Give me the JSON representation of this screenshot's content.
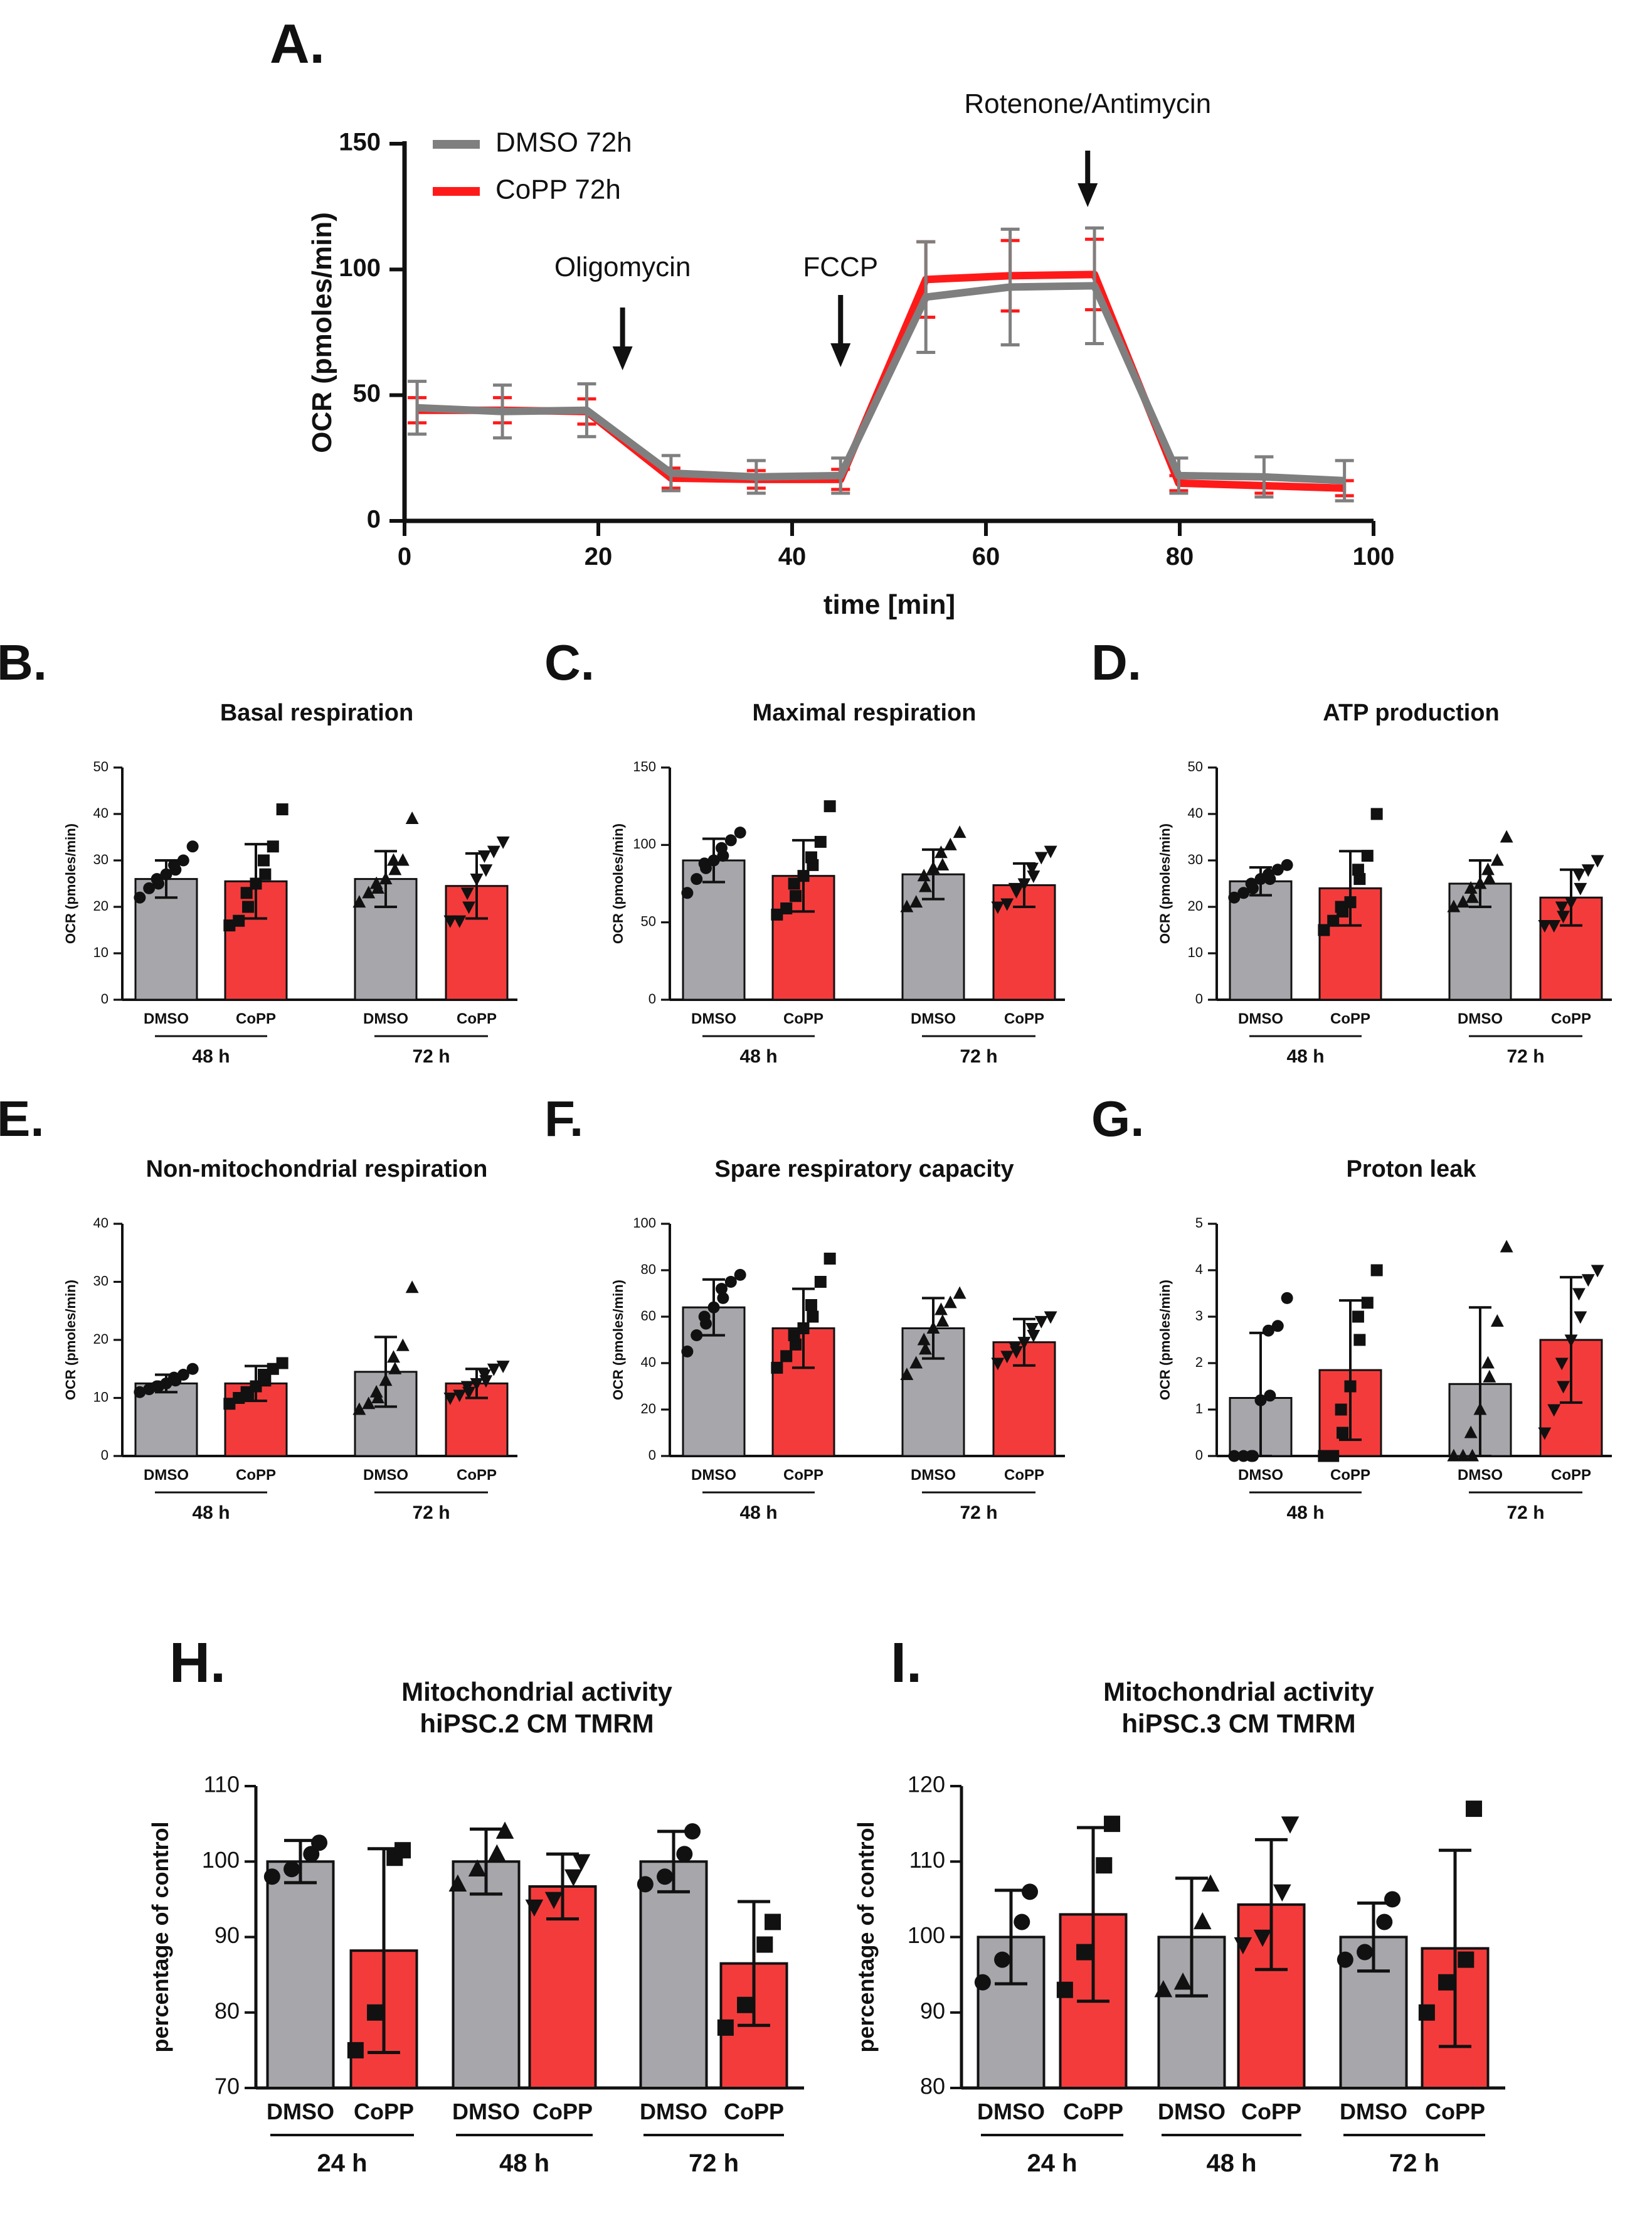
{
  "colors": {
    "dmso_bar": "#a6a6ab",
    "copp_bar": "#f43b3b",
    "dmso_line": "#7f7f7f",
    "copp_line": "#ff1a1a",
    "axis": "#111111"
  },
  "chart_data": [
    {
      "id": "A",
      "panel_label": "A.",
      "type": "line",
      "title": "",
      "xlabel": "time [min]",
      "ylabel": "OCR (pmoles/min)",
      "xlim": [
        0,
        100
      ],
      "ylim": [
        0,
        150
      ],
      "xticks": [
        "0",
        "20",
        "40",
        "60",
        "80",
        "100"
      ],
      "yticks": [
        "0",
        "50",
        "100",
        "150"
      ],
      "legend": [
        "DMSO 72h",
        "CoPP 72h"
      ],
      "annotations": [
        {
          "text": "Oligomycin",
          "x": 22.5
        },
        {
          "text": "FCCP",
          "x": 45
        },
        {
          "text": "Rotenone/Antimycin",
          "x": 70.5
        }
      ],
      "x": [
        1.3,
        10.1,
        18.8,
        27.5,
        36.3,
        45.0,
        53.8,
        62.5,
        71.2,
        79.9,
        88.7,
        97.0
      ],
      "series": [
        {
          "name": "DMSO 72h",
          "values": [
            45,
            43.5,
            44,
            19,
            17.5,
            18,
            89,
            93,
            93.5,
            18,
            17.5,
            16
          ],
          "errors": [
            10.5,
            10.5,
            10.5,
            7,
            6.5,
            7,
            22,
            23,
            23,
            7,
            8,
            8
          ]
        },
        {
          "name": "CoPP 72h",
          "values": [
            44,
            44,
            43.5,
            17,
            16.5,
            16.5,
            96,
            97.5,
            98,
            15,
            14,
            13
          ],
          "errors": [
            5,
            5,
            5,
            4,
            3.5,
            4,
            15,
            14,
            14,
            3,
            3,
            3
          ]
        }
      ]
    },
    {
      "id": "B",
      "panel_label": "B.",
      "type": "bar",
      "title": "Basal respiration",
      "ylabel": "OCR (pmoles/min)",
      "ylim": [
        0,
        50
      ],
      "yticks": [
        "0",
        "10",
        "20",
        "30",
        "40",
        "50"
      ],
      "categories": [
        "DMSO",
        "CoPP",
        "DMSO",
        "CoPP"
      ],
      "groups": [
        "48 h",
        "72 h"
      ],
      "values": [
        26,
        25.5,
        26,
        24.5
      ],
      "errors": [
        4,
        8,
        6,
        7
      ],
      "points": [
        [
          22,
          24,
          25,
          26,
          27,
          28,
          29,
          30,
          33
        ],
        [
          16,
          17,
          20,
          23,
          25,
          27,
          30,
          33,
          41
        ],
        [
          21,
          23,
          24,
          25,
          26,
          28,
          30,
          30,
          39
        ],
        [
          17,
          17,
          20,
          23,
          26,
          28,
          31,
          32,
          34
        ]
      ]
    },
    {
      "id": "C",
      "panel_label": "C.",
      "type": "bar",
      "title": "Maximal respiration",
      "ylabel": "OCR (pmoles/min)",
      "ylim": [
        0,
        150
      ],
      "yticks": [
        "0",
        "50",
        "100",
        "150"
      ],
      "categories": [
        "DMSO",
        "CoPP",
        "DMSO",
        "CoPP"
      ],
      "groups": [
        "48 h",
        "72 h"
      ],
      "values": [
        90,
        80,
        81,
        74
      ],
      "errors": [
        14,
        23,
        16,
        14
      ],
      "points": [
        [
          69,
          78,
          85,
          88,
          90,
          93,
          98,
          103,
          108
        ],
        [
          55,
          59,
          67,
          75,
          80,
          87,
          92,
          102,
          125
        ],
        [
          60,
          63,
          73,
          80,
          85,
          87,
          95,
          100,
          108
        ],
        [
          60,
          62,
          70,
          72,
          75,
          80,
          85,
          92,
          96
        ]
      ]
    },
    {
      "id": "D",
      "panel_label": "D.",
      "type": "bar",
      "title": "ATP production",
      "ylabel": "OCR (pmoles/min)",
      "ylim": [
        0,
        50
      ],
      "yticks": [
        "0",
        "10",
        "20",
        "30",
        "40",
        "50"
      ],
      "categories": [
        "DMSO",
        "CoPP",
        "DMSO",
        "CoPP"
      ],
      "groups": [
        "48 h",
        "72 h"
      ],
      "values": [
        25.5,
        24,
        25,
        22
      ],
      "errors": [
        3,
        8,
        5,
        6
      ],
      "points": [
        [
          22,
          23,
          24,
          25,
          26,
          26,
          27,
          28,
          29
        ],
        [
          15,
          17,
          19,
          20,
          21,
          26,
          28,
          31,
          40
        ],
        [
          20,
          21,
          22,
          24,
          25,
          26,
          28,
          30,
          35
        ],
        [
          16,
          16,
          18,
          20,
          21,
          24,
          27,
          28,
          30
        ]
      ]
    },
    {
      "id": "E",
      "panel_label": "E.",
      "type": "bar",
      "title": "Non-mitochondrial respiration",
      "ylabel": "OCR (pmoles/min)",
      "ylim": [
        0,
        40
      ],
      "yticks": [
        "0",
        "10",
        "20",
        "30",
        "40"
      ],
      "categories": [
        "DMSO",
        "CoPP",
        "DMSO",
        "CoPP"
      ],
      "groups": [
        "48 h",
        "72 h"
      ],
      "values": [
        12.5,
        12.5,
        14.5,
        12.5
      ],
      "errors": [
        1.5,
        3,
        6,
        2.5
      ],
      "points": [
        [
          11,
          11.5,
          12,
          12,
          12.5,
          13,
          13.5,
          14,
          15
        ],
        [
          9,
          10,
          10.5,
          11,
          12,
          13,
          14,
          15,
          16
        ],
        [
          8,
          9,
          10,
          11,
          13,
          15,
          17,
          19,
          29
        ],
        [
          10,
          10.5,
          11,
          12,
          12.5,
          13,
          14,
          15,
          15.5
        ]
      ]
    },
    {
      "id": "F",
      "panel_label": "F.",
      "type": "bar",
      "title": "Spare respiratory capacity",
      "ylabel": "OCR (pmoles/min)",
      "ylim": [
        0,
        100
      ],
      "yticks": [
        "0",
        "20",
        "40",
        "60",
        "80",
        "100"
      ],
      "categories": [
        "DMSO",
        "CoPP",
        "DMSO",
        "CoPP"
      ],
      "groups": [
        "48 h",
        "72 h"
      ],
      "values": [
        64,
        55,
        55,
        49
      ],
      "errors": [
        12,
        17,
        13,
        10
      ],
      "points": [
        [
          45,
          52,
          57,
          60,
          64,
          68,
          72,
          75,
          78
        ],
        [
          38,
          43,
          48,
          52,
          55,
          60,
          65,
          75,
          85
        ],
        [
          35,
          40,
          46,
          50,
          55,
          58,
          63,
          66,
          70
        ],
        [
          40,
          43,
          45,
          47,
          49,
          52,
          55,
          58,
          60
        ]
      ]
    },
    {
      "id": "G",
      "panel_label": "G.",
      "type": "bar",
      "title": "Proton leak",
      "ylabel": "OCR (pmoles/min)",
      "ylim": [
        0,
        5
      ],
      "yticks": [
        "0",
        "1",
        "2",
        "3",
        "4",
        "5"
      ],
      "categories": [
        "DMSO",
        "CoPP",
        "DMSO",
        "CoPP"
      ],
      "groups": [
        "48 h",
        "72 h"
      ],
      "values": [
        1.25,
        1.85,
        1.55,
        2.5
      ],
      "errors": [
        1.4,
        1.5,
        1.65,
        1.35
      ],
      "points": [
        [
          0,
          0,
          0,
          0,
          1.2,
          1.3,
          2.7,
          2.8,
          3.4
        ],
        [
          0,
          0,
          0.5,
          1,
          1.5,
          2.5,
          3,
          3.3,
          4
        ],
        [
          0,
          0,
          0,
          0.5,
          1,
          1.7,
          2,
          2.9,
          4.5
        ],
        [
          0.5,
          1,
          1.5,
          2,
          2.5,
          3,
          3.5,
          3.8,
          4
        ]
      ]
    },
    {
      "id": "H",
      "panel_label": "H.",
      "type": "bar",
      "title": "Mitochondrial activity",
      "subtitle": "hiPSC.2 CM TMRM",
      "ylabel": "percentage of control",
      "ylim": [
        70,
        110
      ],
      "yticks": [
        "70",
        "80",
        "90",
        "100",
        "110"
      ],
      "categories": [
        "DMSO",
        "CoPP",
        "DMSO",
        "CoPP",
        "DMSO",
        "CoPP"
      ],
      "groups": [
        "24 h",
        "48 h",
        "72 h"
      ],
      "values": [
        100,
        88.2,
        100,
        96.7,
        100,
        86.5
      ],
      "errors": [
        2.8,
        13.5,
        4.3,
        4.3,
        4,
        8.2
      ],
      "points": [
        [
          98,
          99,
          101,
          102.5
        ],
        [
          75,
          80,
          100.5,
          101.5
        ],
        [
          97,
          99,
          101,
          104
        ],
        [
          94,
          95,
          98,
          100
        ],
        [
          97,
          98,
          101,
          104
        ],
        [
          78,
          81,
          89,
          92
        ]
      ]
    },
    {
      "id": "I",
      "panel_label": "I.",
      "type": "bar",
      "title": "Mitochondrial activity",
      "subtitle": "hiPSC.3 CM TMRM",
      "ylabel": "percentage of control",
      "ylim": [
        80,
        120
      ],
      "yticks": [
        "80",
        "90",
        "100",
        "110",
        "120"
      ],
      "categories": [
        "DMSO",
        "CoPP",
        "DMSO",
        "CoPP",
        "DMSO",
        "CoPP"
      ],
      "groups": [
        "24 h",
        "48 h",
        "72 h"
      ],
      "values": [
        100,
        103,
        100,
        104.3,
        100,
        98.5
      ],
      "errors": [
        6.2,
        11.5,
        7.8,
        8.6,
        4.5,
        13
      ],
      "points": [
        [
          94,
          97,
          102,
          106
        ],
        [
          93,
          98,
          109.5,
          115
        ],
        [
          93,
          94,
          102,
          107
        ],
        [
          99,
          100,
          106,
          115
        ],
        [
          97,
          98,
          102,
          105
        ],
        [
          90,
          94,
          97,
          117
        ]
      ]
    }
  ]
}
